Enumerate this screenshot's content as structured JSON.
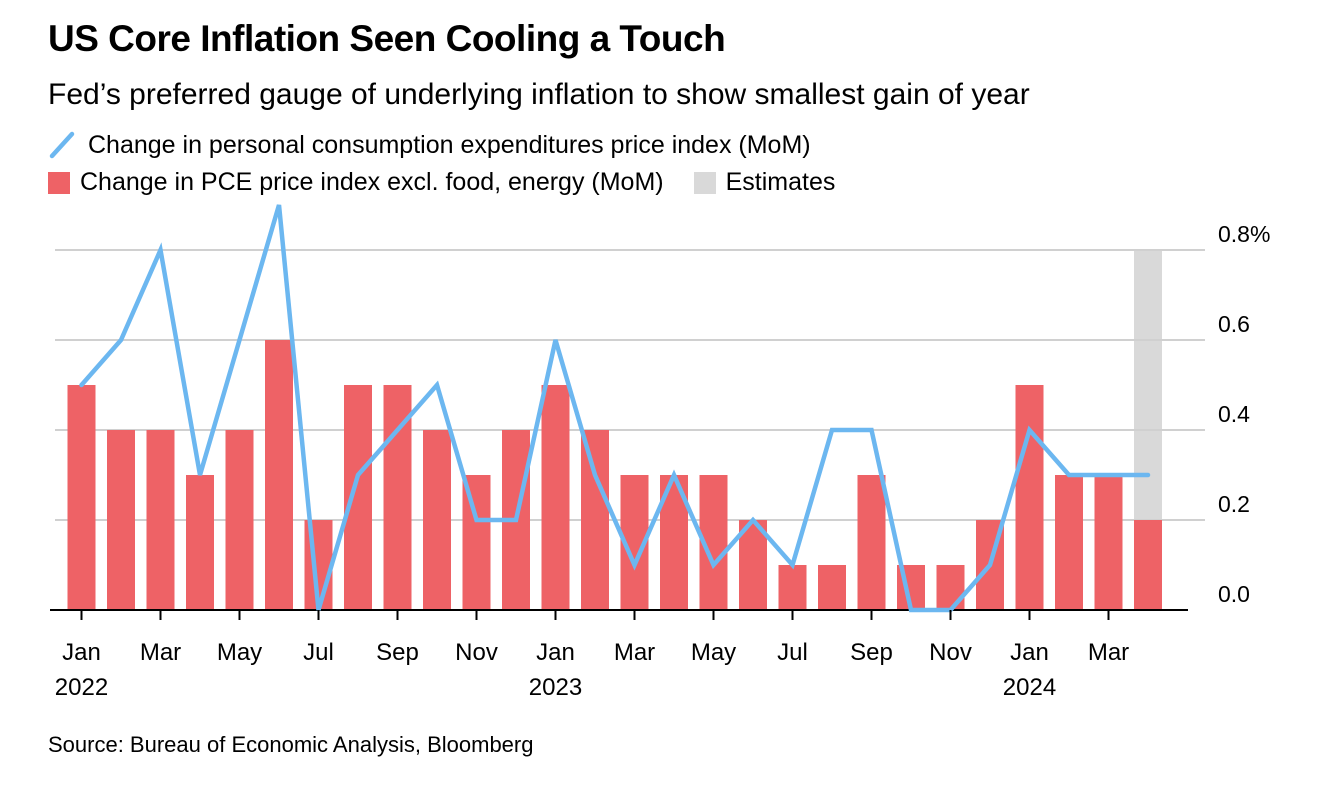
{
  "header": {
    "title": "US Core Inflation Seen Cooling a Touch",
    "subtitle": "Fed’s preferred gauge of underlying inflation to show smallest gain of year"
  },
  "legend": {
    "line_label": "Change in personal consumption expenditures price index (MoM)",
    "bar_label": "Change in PCE price index excl. food, energy (MoM)",
    "estimate_label": "Estimates"
  },
  "footer": {
    "source": "Source: Bureau of Economic Analysis, Bloomberg"
  },
  "colors": {
    "line": "#6cb7f0",
    "bar": "#ee6266",
    "estimate": "#d9d9d9",
    "grid": "#d0d0d0",
    "axis": "#000000"
  },
  "chart_data": {
    "type": "bar",
    "title": "US Core Inflation Seen Cooling a Touch",
    "subtitle": "Fed’s preferred gauge of underlying inflation to show smallest gain of year",
    "categories": [
      "2022-01",
      "2022-02",
      "2022-03",
      "2022-04",
      "2022-05",
      "2022-06",
      "2022-07",
      "2022-08",
      "2022-09",
      "2022-10",
      "2022-11",
      "2022-12",
      "2023-01",
      "2023-02",
      "2023-03",
      "2023-04",
      "2023-05",
      "2023-06",
      "2023-07",
      "2023-08",
      "2023-09",
      "2023-10",
      "2023-11",
      "2023-12",
      "2024-01",
      "2024-02",
      "2024-03",
      "2024-04"
    ],
    "series": [
      {
        "name": "Change in PCE price index excl. food, energy (MoM)",
        "type": "bar",
        "values": [
          0.5,
          0.4,
          0.4,
          0.3,
          0.4,
          0.6,
          0.2,
          0.5,
          0.5,
          0.4,
          0.3,
          0.4,
          0.5,
          0.4,
          0.3,
          0.3,
          0.3,
          0.2,
          0.1,
          0.1,
          0.3,
          0.1,
          0.1,
          0.2,
          0.5,
          0.3,
          0.3,
          0.2
        ]
      },
      {
        "name": "Change in personal consumption expenditures price index (MoM)",
        "type": "line",
        "values": [
          0.5,
          0.6,
          0.8,
          0.3,
          0.6,
          0.9,
          0.0,
          0.3,
          0.4,
          0.5,
          0.2,
          0.2,
          0.6,
          0.3,
          0.1,
          0.3,
          0.1,
          0.2,
          0.1,
          0.4,
          0.4,
          0.0,
          0.0,
          0.1,
          0.4,
          0.3,
          0.3,
          0.3
        ]
      }
    ],
    "estimates": {
      "label": "Estimates",
      "categories": [
        "2024-04"
      ]
    },
    "y_ticks": [
      {
        "value": 0.8,
        "label": "0.8%"
      },
      {
        "value": 0.6,
        "label": "0.6"
      },
      {
        "value": 0.4,
        "label": "0.4"
      },
      {
        "value": 0.2,
        "label": "0.2"
      },
      {
        "value": 0.0,
        "label": "0.0"
      }
    ],
    "x_ticks": [
      {
        "index": 0,
        "month": "Jan",
        "year": "2022"
      },
      {
        "index": 2,
        "month": "Mar",
        "year": ""
      },
      {
        "index": 4,
        "month": "May",
        "year": ""
      },
      {
        "index": 6,
        "month": "Jul",
        "year": ""
      },
      {
        "index": 8,
        "month": "Sep",
        "year": ""
      },
      {
        "index": 10,
        "month": "Nov",
        "year": ""
      },
      {
        "index": 12,
        "month": "Jan",
        "year": "2023"
      },
      {
        "index": 14,
        "month": "Mar",
        "year": ""
      },
      {
        "index": 16,
        "month": "May",
        "year": ""
      },
      {
        "index": 18,
        "month": "Jul",
        "year": ""
      },
      {
        "index": 20,
        "month": "Sep",
        "year": ""
      },
      {
        "index": 22,
        "month": "Nov",
        "year": ""
      },
      {
        "index": 24,
        "month": "Jan",
        "year": "2024"
      },
      {
        "index": 26,
        "month": "Mar",
        "year": ""
      }
    ],
    "ylim": [
      0,
      0.8
    ],
    "xlabel": "",
    "ylabel": "",
    "grid": true,
    "y_axis_side": "right",
    "legend_position": "top-left"
  }
}
